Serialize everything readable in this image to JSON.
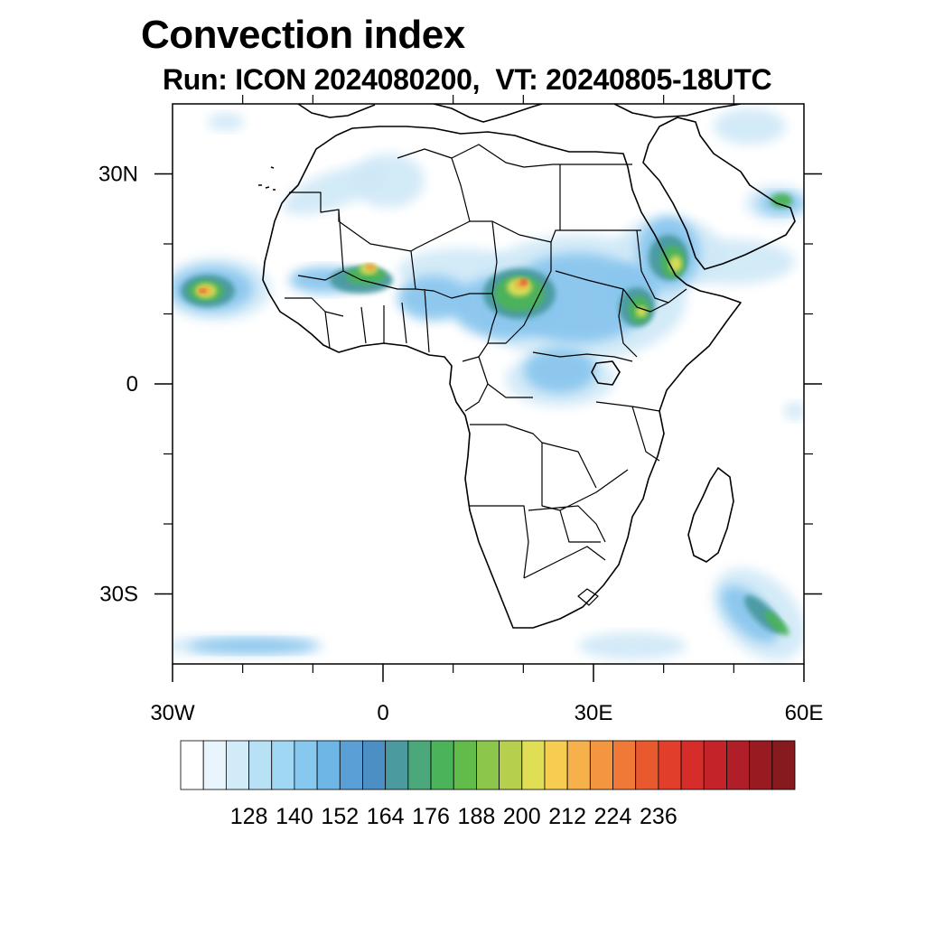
{
  "title": "Convection index",
  "subtitle": "Run: ICON 2024080200,  VT: 20240805-18UTC",
  "map": {
    "lon_range": [
      -30,
      60
    ],
    "lat_range": [
      -40,
      40
    ],
    "lon_ticks": [
      {
        "value": -30,
        "label": "30W"
      },
      {
        "value": 0,
        "label": "0"
      },
      {
        "value": 30,
        "label": "30E"
      },
      {
        "value": 60,
        "label": "60E"
      }
    ],
    "lat_ticks": [
      {
        "value": 30,
        "label": "30N"
      },
      {
        "value": 0,
        "label": "0"
      },
      {
        "value": -30,
        "label": "30S"
      }
    ],
    "minor_lon_ticks": [
      -20,
      -10,
      10,
      20,
      40,
      50
    ],
    "minor_lat_ticks": [
      20,
      10,
      -10,
      -20
    ]
  },
  "colorbar": {
    "labels": [
      "128",
      "140",
      "152",
      "164",
      "176",
      "188",
      "200",
      "212",
      "224",
      "236"
    ],
    "colors": [
      "#ffffff",
      "#e9f5fc",
      "#d2ebf8",
      "#b9e1f6",
      "#a0d7f4",
      "#86c8ee",
      "#6db6e5",
      "#5a9fd6",
      "#4c8fc4",
      "#4a9aa0",
      "#4aa87a",
      "#4bb359",
      "#62bc4a",
      "#8cc64b",
      "#b6d04d",
      "#e0de55",
      "#f6cc51",
      "#f6b14a",
      "#f49540",
      "#f07937",
      "#e9592e",
      "#e13f2b",
      "#d62d2b",
      "#c4232a",
      "#b01f27",
      "#9a1a22",
      "#861a1e"
    ]
  },
  "field_colors": {
    "light": "#cfe8f7",
    "blue": "#8ac6ee",
    "teal": "#4a9aa0",
    "green": "#4bb359",
    "yellow": "#e0de55",
    "orange": "#f49540",
    "red": "#d62d2b"
  }
}
